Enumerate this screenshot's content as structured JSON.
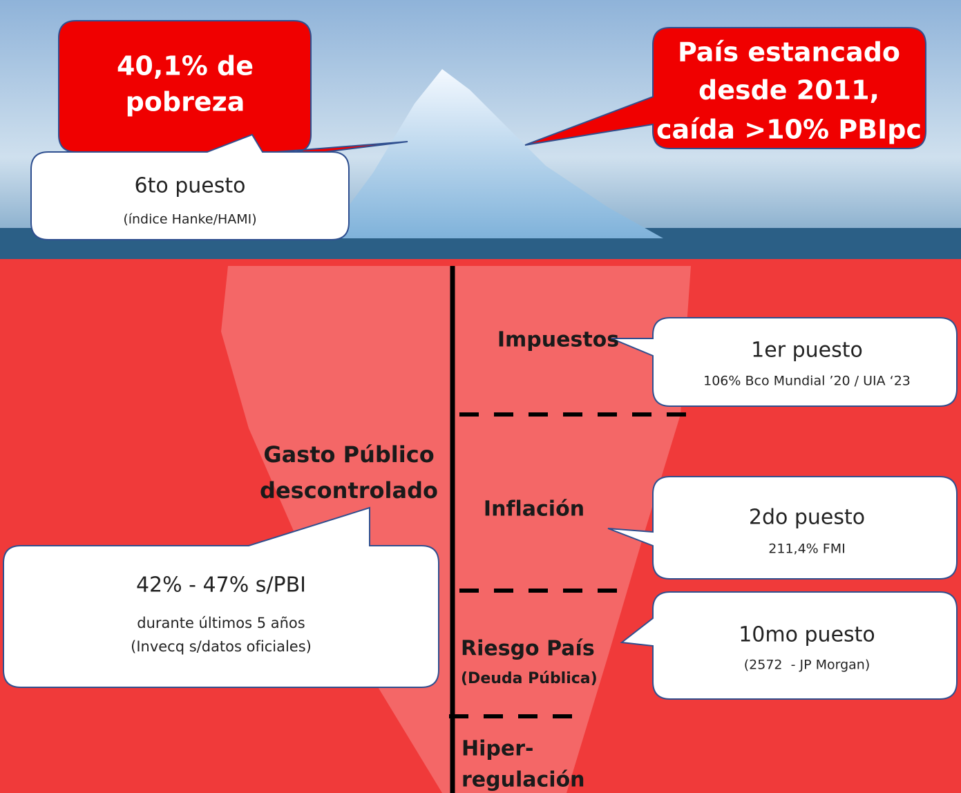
{
  "surface": {
    "poverty": {
      "lines": [
        "40,1% de",
        "pobreza"
      ]
    },
    "stagnation": {
      "lines": [
        "País estancado",
        "desde 2011,",
        "caída >10% PBIpc"
      ]
    },
    "poverty_rank": {
      "title": "6to puesto",
      "note": "(índice Hanke/HAMI)"
    }
  },
  "layers": [
    {
      "lines": [
        "Impuestos"
      ]
    },
    {
      "lines": [
        "Inflación"
      ]
    },
    {
      "lines": [
        "Riesgo País",
        "(Deuda Pública)"
      ]
    },
    {
      "lines": [
        "Hiper-",
        "regulación"
      ]
    }
  ],
  "rankings": [
    {
      "title": "1er puesto",
      "note": "106% Bco Mundial ’20 / UIA ‘23"
    },
    {
      "title": "2do puesto",
      "note": "211,4% FMI"
    },
    {
      "title": "10mo puesto",
      "note": "(2572  - JP Morgan)"
    }
  ],
  "spending": {
    "lines": [
      "Gasto Público",
      "descontrolado"
    ],
    "title": "42% - 47% s/PBI",
    "notes": [
      "durante últimos 5 años",
      "(Invecq s/datos oficiales)"
    ]
  }
}
